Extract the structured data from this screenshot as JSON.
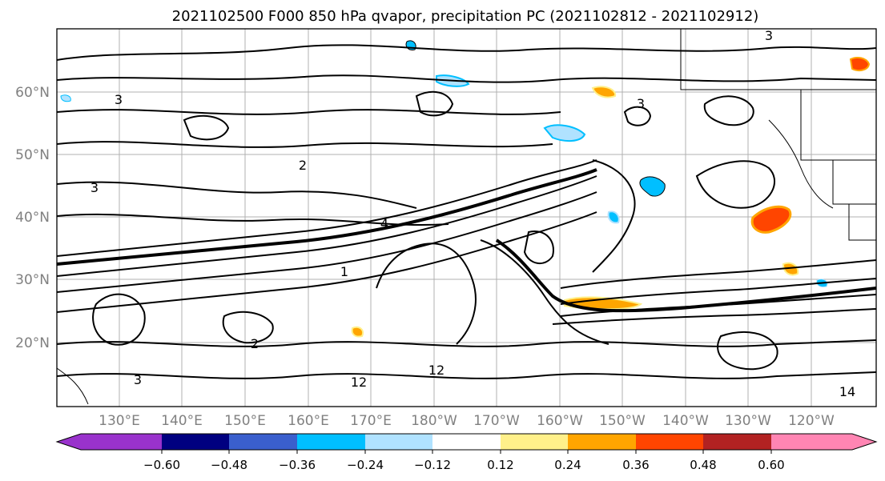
{
  "title": "2021102500 F000 850 hPa qvapor, precipitation PC (2021102812 - 2021102912)",
  "map": {
    "lat_labels": [
      "60°N",
      "50°N",
      "40°N",
      "30°N",
      "20°N"
    ],
    "lon_labels": [
      "130°E",
      "140°E",
      "150°E",
      "160°E",
      "170°E",
      "180°W",
      "170°W",
      "160°W",
      "150°W",
      "140°W",
      "130°W",
      "120°W"
    ],
    "contour_labels": [
      "3",
      "2",
      "4",
      "3",
      "1",
      "12",
      "12",
      "3",
      "14",
      "3",
      "2",
      "3"
    ],
    "gridlines": true
  },
  "colorbar": {
    "colors": [
      "#9932cc",
      "#000080",
      "#3a5fcd",
      "#00bfff",
      "#b0e2ff",
      "#ffffff",
      "#fff08a",
      "#ffa500",
      "#ff4500",
      "#b22222",
      "#ff85b3"
    ],
    "tick_labels": [
      "−0.60",
      "−0.48",
      "−0.36",
      "−0.24",
      "−0.12",
      "0.12",
      "0.24",
      "0.36",
      "0.48",
      "0.60"
    ],
    "extend": "both"
  }
}
